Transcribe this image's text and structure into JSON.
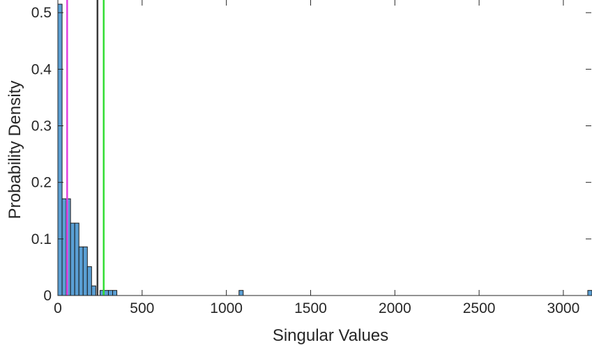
{
  "chart_data": {
    "type": "bar",
    "title": "",
    "xlabel": "Singular Values",
    "ylabel": "Probability Density",
    "xlim": [
      0,
      3170
    ],
    "ylim": [
      0,
      0.515
    ],
    "x_ticks": [
      0,
      500,
      1000,
      1500,
      2000,
      2500,
      3000
    ],
    "x_tick_labels": [
      "0",
      "500",
      "1000",
      "1500",
      "2000",
      "2500",
      "3000"
    ],
    "y_ticks": [
      0,
      0.1,
      0.2,
      0.3,
      0.4,
      0.5
    ],
    "y_tick_labels": [
      "0",
      "0.1",
      "0.2",
      "0.3",
      "0.4",
      "0.5"
    ],
    "grid": false,
    "bin_width": 25,
    "bins": [
      {
        "x0": 0,
        "x1": 25,
        "density": 0.515
      },
      {
        "x0": 25,
        "x1": 50,
        "density": 0.171
      },
      {
        "x0": 50,
        "x1": 75,
        "density": 0.171
      },
      {
        "x0": 75,
        "x1": 100,
        "density": 0.128
      },
      {
        "x0": 100,
        "x1": 125,
        "density": 0.128
      },
      {
        "x0": 125,
        "x1": 150,
        "density": 0.086
      },
      {
        "x0": 150,
        "x1": 175,
        "density": 0.086
      },
      {
        "x0": 175,
        "x1": 200,
        "density": 0.051
      },
      {
        "x0": 200,
        "x1": 225,
        "density": 0.017
      },
      {
        "x0": 250,
        "x1": 275,
        "density": 0.009
      },
      {
        "x0": 275,
        "x1": 300,
        "density": 0.009
      },
      {
        "x0": 300,
        "x1": 325,
        "density": 0.009
      },
      {
        "x0": 325,
        "x1": 350,
        "density": 0.009
      },
      {
        "x0": 1075,
        "x1": 1100,
        "density": 0.009
      },
      {
        "x0": 3145,
        "x1": 3170,
        "density": 0.009
      }
    ],
    "bar_color": "#5a9fd4",
    "bar_edge_color": "#1a1a1a",
    "vertical_lines": [
      {
        "x": 55,
        "color": "#e040e0"
      },
      {
        "x": 235,
        "color": "#3a3a3a"
      },
      {
        "x": 272,
        "color": "#33dd33"
      }
    ]
  }
}
